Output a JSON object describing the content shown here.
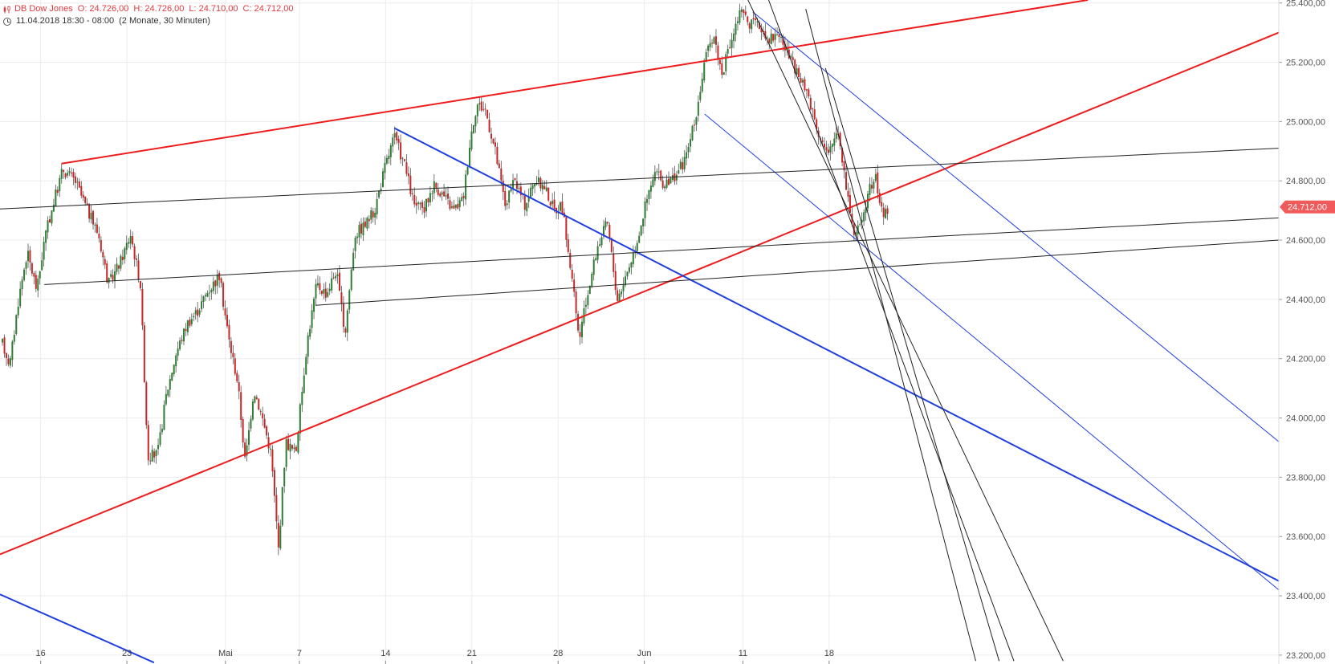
{
  "header": {
    "instrument": "DB Dow Jones",
    "ohlc": {
      "open": "O: 24.726,00",
      "high": "H: 24.726,00",
      "low": "L: 24.710,00",
      "close": "C: 24.712,00"
    },
    "range_text": "11.04.2018 18:30 - 08:00",
    "period_text": "(2 Monate, 30 Minuten)"
  },
  "colors": {
    "up": "#2e7d32",
    "down": "#c62828",
    "wick": "#555555",
    "grid": "#ececec",
    "red_line": "#ee1c1c",
    "blue_line": "#1f3fe0",
    "black_line": "#222222",
    "price_tag": "#f05a5a"
  },
  "chart_data": {
    "type": "candlestick",
    "interval": "30 Minuten",
    "y_axis": {
      "range": [
        23170,
        25410
      ],
      "ticks": [
        25400,
        25200,
        25000,
        24800,
        24600,
        24400,
        24200,
        24000,
        23800,
        23600,
        23400,
        23200
      ],
      "tick_labels": [
        "25.400,00",
        "25.200,00",
        "25.000,00",
        "24.800,00",
        "24.600,00",
        "24.400,00",
        "24.200,00",
        "24.000,00",
        "23.800,00",
        "23.600,00",
        "23.400,00",
        "23.200,00"
      ]
    },
    "x_axis": {
      "ticks": [
        0.5,
        7.5,
        15.5,
        21.5,
        28.5,
        35.5,
        42.5,
        49.5,
        57.5,
        64.5
      ],
      "tick_labels": [
        "16",
        "23",
        "Mai",
        "7",
        "14",
        "21",
        "28",
        "Jun",
        "11",
        "18"
      ],
      "range": [
        -2.8,
        101
      ]
    },
    "current_price": 24712,
    "current_price_label": "24.712,00",
    "price_path": [
      [
        -2.6,
        24250
      ],
      [
        -2,
        24180
      ],
      [
        -1.3,
        24400
      ],
      [
        -0.6,
        24560
      ],
      [
        0.2,
        24430
      ],
      [
        0.8,
        24600
      ],
      [
        1.5,
        24720
      ],
      [
        2.3,
        24840
      ],
      [
        3.3,
        24800
      ],
      [
        4.3,
        24700
      ],
      [
        5.2,
        24620
      ],
      [
        6,
        24450
      ],
      [
        7,
        24530
      ],
      [
        7.8,
        24620
      ],
      [
        8.6,
        24450
      ],
      [
        9.2,
        23870
      ],
      [
        10,
        23880
      ],
      [
        10.7,
        24080
      ],
      [
        11.5,
        24220
      ],
      [
        12.4,
        24320
      ],
      [
        13.2,
        24360
      ],
      [
        14.1,
        24430
      ],
      [
        15,
        24480
      ],
      [
        15.8,
        24260
      ],
      [
        16.5,
        24120
      ],
      [
        17.1,
        23850
      ],
      [
        17.8,
        24100
      ],
      [
        18.5,
        24000
      ],
      [
        19.2,
        23880
      ],
      [
        19.8,
        23560
      ],
      [
        20.4,
        23920
      ],
      [
        21.2,
        23880
      ],
      [
        22.1,
        24250
      ],
      [
        22.9,
        24450
      ],
      [
        23.7,
        24420
      ],
      [
        24.5,
        24500
      ],
      [
        25.2,
        24280
      ],
      [
        26,
        24620
      ],
      [
        26.8,
        24650
      ],
      [
        27.6,
        24700
      ],
      [
        28.4,
        24840
      ],
      [
        29.2,
        24950
      ],
      [
        30,
        24860
      ],
      [
        30.8,
        24720
      ],
      [
        31.6,
        24700
      ],
      [
        32.4,
        24790
      ],
      [
        33.2,
        24750
      ],
      [
        34,
        24700
      ],
      [
        34.8,
        24740
      ],
      [
        35.4,
        24950
      ],
      [
        35.9,
        25060
      ],
      [
        36.6,
        25040
      ],
      [
        37.4,
        24900
      ],
      [
        38.2,
        24720
      ],
      [
        39,
        24800
      ],
      [
        39.8,
        24720
      ],
      [
        40.6,
        24800
      ],
      [
        41.4,
        24780
      ],
      [
        42.2,
        24700
      ],
      [
        42.8,
        24720
      ],
      [
        43.6,
        24480
      ],
      [
        44.2,
        24260
      ],
      [
        44.9,
        24420
      ],
      [
        45.7,
        24580
      ],
      [
        46.5,
        24660
      ],
      [
        47.3,
        24400
      ],
      [
        48,
        24480
      ],
      [
        48.8,
        24580
      ],
      [
        49.6,
        24720
      ],
      [
        50.4,
        24830
      ],
      [
        51.2,
        24780
      ],
      [
        52,
        24820
      ],
      [
        52.8,
        24870
      ],
      [
        53.6,
        25000
      ],
      [
        54.4,
        25200
      ],
      [
        55.1,
        25300
      ],
      [
        55.8,
        25160
      ],
      [
        56.6,
        25280
      ],
      [
        57.3,
        25370
      ],
      [
        58.1,
        25330
      ],
      [
        58.9,
        25320
      ],
      [
        59.7,
        25280
      ],
      [
        60.4,
        25300
      ],
      [
        61.2,
        25220
      ],
      [
        62,
        25150
      ],
      [
        62.8,
        25090
      ],
      [
        63.6,
        24970
      ],
      [
        64.4,
        24880
      ],
      [
        65.2,
        24980
      ],
      [
        65.9,
        24780
      ],
      [
        66.6,
        24600
      ],
      [
        67.4,
        24720
      ],
      [
        68.2,
        24820
      ],
      [
        68.8,
        24690
      ],
      [
        69.3,
        24700
      ]
    ],
    "trendlines": [
      {
        "color": "red",
        "width": 2,
        "p1": [
          2.2,
          24858
        ],
        "p2": [
          85.5,
          25410
        ]
      },
      {
        "color": "red",
        "width": 2,
        "p1": [
          -2.8,
          23540
        ],
        "p2": [
          101,
          25300
        ]
      },
      {
        "color": "blue",
        "width": 2,
        "p1": [
          29.2,
          24978
        ],
        "p2": [
          101,
          23450
        ]
      },
      {
        "color": "blue",
        "width": 2,
        "p1": [
          -2.8,
          23405
        ],
        "p2": [
          9.7,
          23175
        ]
      },
      {
        "color": "blue",
        "width": 1,
        "p1": [
          54.4,
          25025
        ],
        "p2": [
          101,
          23420
        ]
      },
      {
        "color": "blue",
        "width": 1,
        "p1": [
          58.3,
          25370
        ],
        "p2": [
          101,
          23920
        ]
      },
      {
        "color": "black",
        "width": 1,
        "p1": [
          -2.8,
          24705
        ],
        "p2": [
          101,
          24910
        ]
      },
      {
        "color": "black",
        "width": 1,
        "p1": [
          0.8,
          24450
        ],
        "p2": [
          101,
          24675
        ]
      },
      {
        "color": "black",
        "width": 1,
        "p1": [
          22.8,
          24380
        ],
        "p2": [
          101,
          24600
        ]
      },
      {
        "color": "black",
        "width": 1,
        "p1": [
          57.8,
          25420
        ],
        "p2": [
          83.5,
          23180
        ]
      },
      {
        "color": "black",
        "width": 1,
        "p1": [
          59.5,
          25420
        ],
        "p2": [
          79.5,
          23180
        ]
      },
      {
        "color": "black",
        "width": 1,
        "p1": [
          62.6,
          25380
        ],
        "p2": [
          76.4,
          23180
        ]
      },
      {
        "color": "black",
        "width": 1,
        "p1": [
          64.2,
          25180
        ],
        "p2": [
          78.3,
          23180
        ]
      }
    ]
  }
}
